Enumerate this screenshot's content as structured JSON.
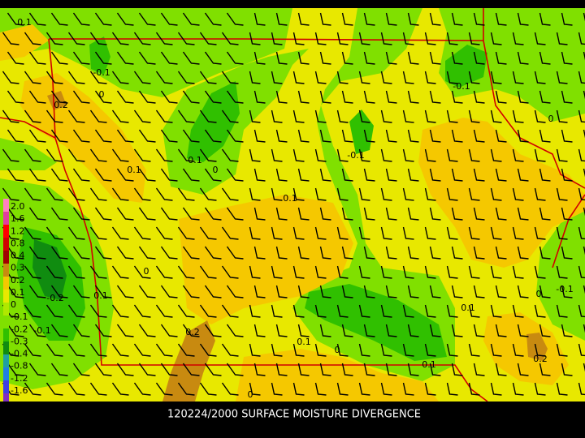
{
  "caption": "120224/2000 SURFACE MOISTURE DIVERGENCE",
  "legend": {
    "labels": [
      "2.0",
      "1.6",
      "1.2",
      "0.8",
      "0.4",
      "0.3",
      "0.2",
      "0.1",
      "0",
      "-0.1",
      "-0.2",
      "-0.3",
      "-0.4",
      "-0.8",
      "-1.2",
      "-1.6"
    ],
    "colors": [
      "#ff80c0",
      "#e040a0",
      "#ff0000",
      "#d00000",
      "#a00000",
      "#c88a10",
      "#f5c800",
      "#e8e800",
      "#b0e800",
      "#80e000",
      "#30c000",
      "#108c10",
      "#20a0a0",
      "#2080e0",
      "#4040e0",
      "#8030c0"
    ]
  },
  "contour_labels": [
    "0.1",
    "-0.1",
    "0",
    "0.2",
    "0.1",
    "0.1",
    "0",
    "-0.1",
    "0.1",
    "-0.1",
    "0",
    "0",
    "-0.2",
    "0.1",
    "-0.1",
    "0.2",
    "0.1",
    "0",
    "0.1",
    "0.1",
    "0",
    "-0.1",
    "0.2",
    "0"
  ]
}
